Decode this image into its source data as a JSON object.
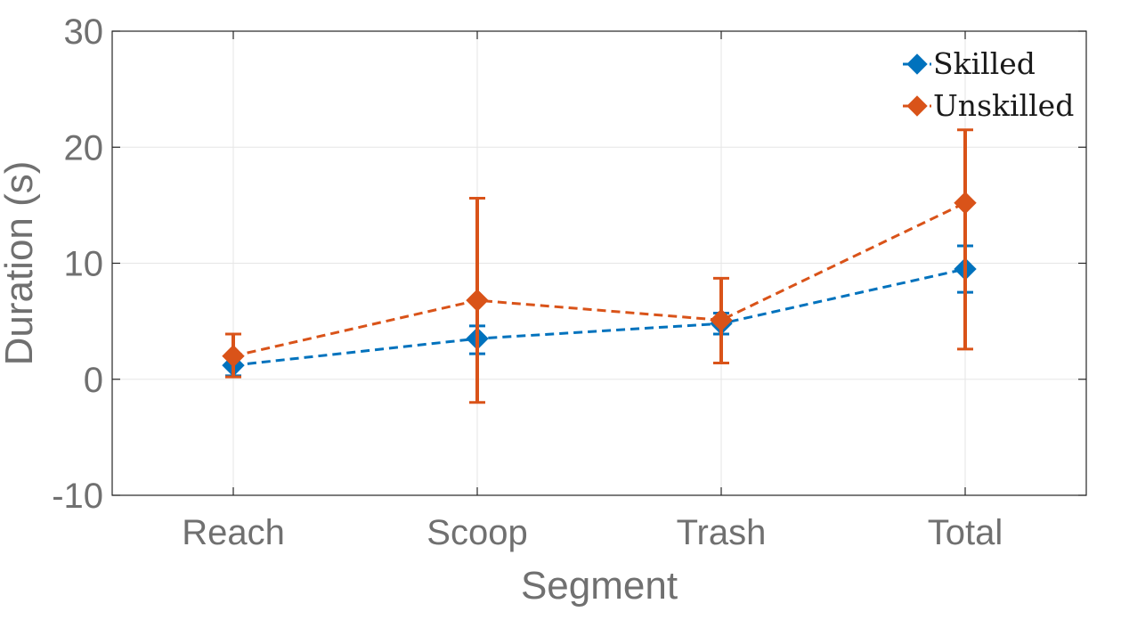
{
  "chart_data": {
    "type": "line",
    "xlabel": "Segment",
    "ylabel": "Duration (s)",
    "categories": [
      "Reach",
      "Scoop",
      "Trash",
      "Total"
    ],
    "ylim": [
      -10,
      30
    ],
    "yticks": [
      -10,
      0,
      10,
      20,
      30
    ],
    "grid": true,
    "legend_position": "top-right",
    "series": [
      {
        "name": "Skilled",
        "color": "#0072BD",
        "values": [
          1.2,
          3.5,
          4.8,
          9.5
        ],
        "err_low": [
          0.3,
          2.2,
          3.9,
          7.5
        ],
        "err_high": [
          2.0,
          4.6,
          5.7,
          11.5
        ]
      },
      {
        "name": "Unskilled",
        "color": "#D95319",
        "values": [
          2.0,
          6.8,
          5.1,
          15.2
        ],
        "err_low": [
          0.2,
          -2.0,
          1.4,
          2.6
        ],
        "err_high": [
          3.9,
          15.6,
          8.7,
          21.5
        ]
      }
    ]
  }
}
